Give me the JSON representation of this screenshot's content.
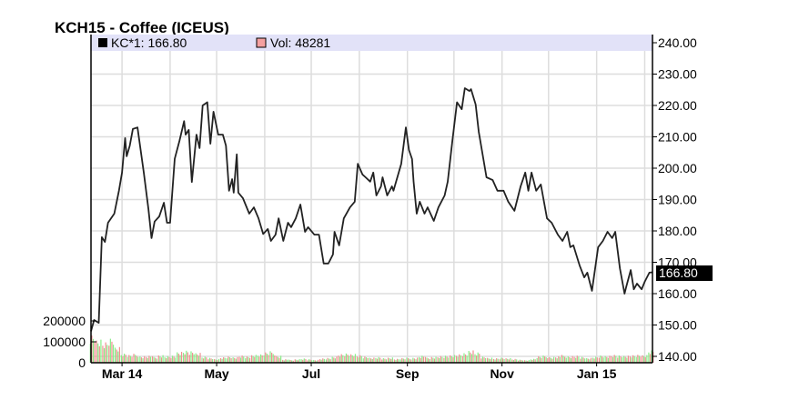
{
  "chart_data": {
    "type": "line",
    "title": "KCH15 - Coffee (ICEUS)",
    "legend": [
      {
        "label": "KC*1: 166.80",
        "color": "#000000"
      },
      {
        "label": "Vol: 48281",
        "color": "#f4a0a0"
      }
    ],
    "legend_placement": "top",
    "last_price_label": "166.80",
    "grid": true,
    "price_axis": {
      "side": "right",
      "ylim": [
        140,
        240
      ],
      "ticks": [
        "140.00",
        "150.00",
        "160.00",
        "170.00",
        "180.00",
        "190.00",
        "200.00",
        "210.00",
        "220.00",
        "230.00",
        "240.00"
      ]
    },
    "volume_axis": {
      "side": "left",
      "ticks": [
        "0",
        "100000",
        "200000"
      ]
    },
    "x_range": [
      "2014-02-09",
      "2015-02-06"
    ],
    "x_ticks": [
      {
        "date": "2014-03-01",
        "label": "Mar 14"
      },
      {
        "date": "2014-05-01",
        "label": "May"
      },
      {
        "date": "2014-07-01",
        "label": "Jul"
      },
      {
        "date": "2014-09-01",
        "label": "Sep"
      },
      {
        "date": "2014-11-01",
        "label": "Nov"
      },
      {
        "date": "2015-01-01",
        "label": "Jan 15"
      }
    ],
    "series": [
      {
        "name": "KC*1",
        "color": "#222222",
        "points": [
          [
            "2014-02-09",
            148
          ],
          [
            "2014-02-11",
            151.6
          ],
          [
            "2014-02-14",
            150.7
          ],
          [
            "2014-02-16",
            178
          ],
          [
            "2014-02-18",
            176.5
          ],
          [
            "2014-02-20",
            182.6
          ],
          [
            "2014-02-24",
            185.5
          ],
          [
            "2014-02-27",
            192.8
          ],
          [
            "2014-03-01",
            198.6
          ],
          [
            "2014-03-03",
            209.6
          ],
          [
            "2014-03-04",
            203.8
          ],
          [
            "2014-03-06",
            207.2
          ],
          [
            "2014-03-08",
            212.5
          ],
          [
            "2014-03-11",
            213
          ],
          [
            "2014-03-15",
            198.6
          ],
          [
            "2014-03-18",
            187
          ],
          [
            "2014-03-20",
            177.7
          ],
          [
            "2014-03-22",
            183
          ],
          [
            "2014-03-25",
            184.6
          ],
          [
            "2014-03-28",
            189
          ],
          [
            "2014-03-30",
            182.6
          ],
          [
            "2014-04-01",
            182.6
          ],
          [
            "2014-04-04",
            203
          ],
          [
            "2014-04-07",
            208.7
          ],
          [
            "2014-04-10",
            215
          ],
          [
            "2014-04-11",
            210.7
          ],
          [
            "2014-04-13",
            212.2
          ],
          [
            "2014-04-15",
            195.6
          ],
          [
            "2014-04-18",
            210.7
          ],
          [
            "2014-04-20",
            206.4
          ],
          [
            "2014-04-22",
            220
          ],
          [
            "2014-04-25",
            221
          ],
          [
            "2014-04-27",
            207.8
          ],
          [
            "2014-04-29",
            218
          ],
          [
            "2014-05-02",
            210.7
          ],
          [
            "2014-05-05",
            210.7
          ],
          [
            "2014-05-07",
            207.2
          ],
          [
            "2014-05-09",
            192.8
          ],
          [
            "2014-05-11",
            196.5
          ],
          [
            "2014-05-12",
            192.2
          ],
          [
            "2014-05-14",
            204.4
          ],
          [
            "2014-05-15",
            192.2
          ],
          [
            "2014-05-18",
            190.4
          ],
          [
            "2014-05-22",
            185.5
          ],
          [
            "2014-05-25",
            187.5
          ],
          [
            "2014-05-28",
            184
          ],
          [
            "2014-05-31",
            179
          ],
          [
            "2014-06-03",
            180.6
          ],
          [
            "2014-06-05",
            176.8
          ],
          [
            "2014-06-08",
            178.8
          ],
          [
            "2014-06-10",
            184
          ],
          [
            "2014-06-13",
            176.8
          ],
          [
            "2014-06-16",
            182.6
          ],
          [
            "2014-06-18",
            181.2
          ],
          [
            "2014-06-21",
            184
          ],
          [
            "2014-06-24",
            188.4
          ],
          [
            "2014-06-27",
            179.7
          ],
          [
            "2014-06-29",
            181.2
          ],
          [
            "2014-07-03",
            178.8
          ],
          [
            "2014-07-06",
            178.8
          ],
          [
            "2014-07-09",
            169.6
          ],
          [
            "2014-07-12",
            169.6
          ],
          [
            "2014-07-15",
            172.5
          ],
          [
            "2014-07-16",
            179.7
          ],
          [
            "2014-07-19",
            175.4
          ],
          [
            "2014-07-22",
            184
          ],
          [
            "2014-07-26",
            187.5
          ],
          [
            "2014-07-29",
            189.3
          ],
          [
            "2014-07-31",
            201.4
          ],
          [
            "2014-08-03",
            198
          ],
          [
            "2014-08-05",
            197.1
          ],
          [
            "2014-08-08",
            195.7
          ],
          [
            "2014-08-10",
            198.6
          ],
          [
            "2014-08-12",
            191.3
          ],
          [
            "2014-08-15",
            194.2
          ],
          [
            "2014-08-16",
            197.1
          ],
          [
            "2014-08-19",
            191.3
          ],
          [
            "2014-08-22",
            194.2
          ],
          [
            "2014-08-23",
            192.8
          ],
          [
            "2014-08-28",
            201.4
          ],
          [
            "2014-08-31",
            213
          ],
          [
            "2014-09-02",
            205.8
          ],
          [
            "2014-09-04",
            202.9
          ],
          [
            "2014-09-05",
            195.7
          ],
          [
            "2014-09-07",
            185.5
          ],
          [
            "2014-09-09",
            189.3
          ],
          [
            "2014-09-12",
            185.5
          ],
          [
            "2014-09-14",
            187.5
          ],
          [
            "2014-09-18",
            183.2
          ],
          [
            "2014-09-21",
            187.5
          ],
          [
            "2014-09-25",
            191.3
          ],
          [
            "2014-09-27",
            195.7
          ],
          [
            "2014-09-30",
            208.7
          ],
          [
            "2014-10-03",
            221
          ],
          [
            "2014-10-06",
            218.8
          ],
          [
            "2014-10-08",
            225.5
          ],
          [
            "2014-10-11",
            224.6
          ],
          [
            "2014-10-12",
            225.2
          ],
          [
            "2014-10-15",
            220.3
          ],
          [
            "2014-10-17",
            211.6
          ],
          [
            "2014-10-20",
            202.9
          ],
          [
            "2014-10-22",
            197.1
          ],
          [
            "2014-10-26",
            196.2
          ],
          [
            "2014-10-29",
            192.8
          ],
          [
            "2014-11-02",
            192.8
          ],
          [
            "2014-11-05",
            189.3
          ],
          [
            "2014-11-09",
            186.4
          ],
          [
            "2014-11-13",
            194.2
          ],
          [
            "2014-11-16",
            198.6
          ],
          [
            "2014-11-18",
            192.8
          ],
          [
            "2014-11-20",
            198.6
          ],
          [
            "2014-11-23",
            192.8
          ],
          [
            "2014-11-26",
            194.8
          ],
          [
            "2014-11-30",
            184
          ],
          [
            "2014-12-03",
            182.6
          ],
          [
            "2014-12-07",
            178.8
          ],
          [
            "2014-12-10",
            176.8
          ],
          [
            "2014-12-13",
            179.7
          ],
          [
            "2014-12-15",
            174.8
          ],
          [
            "2014-12-17",
            175.4
          ],
          [
            "2014-12-21",
            169
          ],
          [
            "2014-12-24",
            165.2
          ],
          [
            "2014-12-26",
            166.7
          ],
          [
            "2014-12-29",
            160.9
          ],
          [
            "2015-01-02",
            174.8
          ],
          [
            "2015-01-05",
            176.8
          ],
          [
            "2015-01-08",
            179.7
          ],
          [
            "2015-01-11",
            177.7
          ],
          [
            "2015-01-13",
            179.7
          ],
          [
            "2015-01-16",
            168.1
          ],
          [
            "2015-01-19",
            160
          ],
          [
            "2015-01-20",
            162
          ],
          [
            "2015-01-23",
            167.5
          ],
          [
            "2015-01-25",
            161.4
          ],
          [
            "2015-01-27",
            163.2
          ],
          [
            "2015-01-30",
            161.4
          ],
          [
            "2015-02-01",
            163.8
          ],
          [
            "2015-02-04",
            166.7
          ],
          [
            "2015-02-06",
            166.8
          ]
        ]
      },
      {
        "name": "Vol",
        "up_color": "#88ee88",
        "down_color": "#f09090",
        "points": [
          [
            "2014-02-10",
            110000,
            "up"
          ],
          [
            "2014-02-14",
            90000,
            "down"
          ],
          [
            "2014-02-18",
            80000,
            "down"
          ],
          [
            "2014-02-22",
            95000,
            "down"
          ],
          [
            "2014-02-26",
            60000,
            "up"
          ],
          [
            "2014-03-02",
            35000,
            "up"
          ],
          [
            "2014-03-06",
            30000,
            "up"
          ],
          [
            "2014-03-10",
            35000,
            "down"
          ],
          [
            "2014-03-14",
            28000,
            "up"
          ],
          [
            "2014-03-18",
            30000,
            "down"
          ],
          [
            "2014-03-22",
            25000,
            "down"
          ],
          [
            "2014-03-26",
            32000,
            "down"
          ],
          [
            "2014-03-30",
            28000,
            "up"
          ],
          [
            "2014-04-03",
            30000,
            "down"
          ],
          [
            "2014-04-07",
            45000,
            "up"
          ],
          [
            "2014-04-11",
            50000,
            "up"
          ],
          [
            "2014-04-15",
            48000,
            "down"
          ],
          [
            "2014-04-19",
            40000,
            "up"
          ],
          [
            "2014-04-23",
            25000,
            "up"
          ],
          [
            "2014-04-27",
            20000,
            "down"
          ],
          [
            "2014-05-01",
            15000,
            "down"
          ],
          [
            "2014-05-05",
            22000,
            "down"
          ],
          [
            "2014-05-09",
            25000,
            "up"
          ],
          [
            "2014-05-13",
            22000,
            "up"
          ],
          [
            "2014-05-17",
            28000,
            "down"
          ],
          [
            "2014-05-21",
            25000,
            "up"
          ],
          [
            "2014-05-25",
            30000,
            "down"
          ],
          [
            "2014-05-29",
            32000,
            "up"
          ],
          [
            "2014-06-02",
            40000,
            "up"
          ],
          [
            "2014-06-06",
            45000,
            "up"
          ],
          [
            "2014-06-10",
            30000,
            "down"
          ],
          [
            "2014-06-14",
            15000,
            "down"
          ],
          [
            "2014-06-18",
            12000,
            "up"
          ],
          [
            "2014-06-22",
            15000,
            "down"
          ],
          [
            "2014-06-26",
            18000,
            "up"
          ],
          [
            "2014-06-30",
            15000,
            "down"
          ],
          [
            "2014-07-04",
            12000,
            "up"
          ],
          [
            "2014-07-08",
            18000,
            "down"
          ],
          [
            "2014-07-12",
            20000,
            "up"
          ],
          [
            "2014-07-16",
            25000,
            "up"
          ],
          [
            "2014-07-20",
            35000,
            "down"
          ],
          [
            "2014-07-24",
            38000,
            "down"
          ],
          [
            "2014-07-28",
            35000,
            "down"
          ],
          [
            "2014-08-01",
            30000,
            "down"
          ],
          [
            "2014-08-05",
            25000,
            "up"
          ],
          [
            "2014-08-09",
            20000,
            "up"
          ],
          [
            "2014-08-13",
            22000,
            "up"
          ],
          [
            "2014-08-17",
            18000,
            "down"
          ],
          [
            "2014-08-21",
            20000,
            "down"
          ],
          [
            "2014-08-25",
            15000,
            "down"
          ],
          [
            "2014-08-29",
            18000,
            "up"
          ],
          [
            "2014-09-02",
            20000,
            "up"
          ],
          [
            "2014-09-06",
            22000,
            "up"
          ],
          [
            "2014-09-10",
            30000,
            "up"
          ],
          [
            "2014-09-14",
            22000,
            "down"
          ],
          [
            "2014-09-18",
            25000,
            "down"
          ],
          [
            "2014-09-22",
            28000,
            "down"
          ],
          [
            "2014-09-26",
            30000,
            "down"
          ],
          [
            "2014-09-30",
            32000,
            "down"
          ],
          [
            "2014-10-04",
            35000,
            "down"
          ],
          [
            "2014-10-08",
            40000,
            "down"
          ],
          [
            "2014-10-12",
            50000,
            "up"
          ],
          [
            "2014-10-16",
            42000,
            "up"
          ],
          [
            "2014-10-20",
            25000,
            "down"
          ],
          [
            "2014-10-24",
            20000,
            "down"
          ],
          [
            "2014-10-28",
            18000,
            "down"
          ],
          [
            "2014-11-01",
            20000,
            "down"
          ],
          [
            "2014-11-05",
            18000,
            "down"
          ],
          [
            "2014-11-09",
            15000,
            "down"
          ],
          [
            "2014-11-13",
            12000,
            "down"
          ],
          [
            "2014-11-17",
            10000,
            "down"
          ],
          [
            "2014-11-21",
            15000,
            "up"
          ],
          [
            "2014-11-25",
            25000,
            "up"
          ],
          [
            "2014-11-29",
            28000,
            "up"
          ],
          [
            "2014-12-03",
            25000,
            "down"
          ],
          [
            "2014-12-07",
            28000,
            "down"
          ],
          [
            "2014-12-11",
            30000,
            "down"
          ],
          [
            "2014-12-15",
            28000,
            "up"
          ],
          [
            "2014-12-19",
            30000,
            "down"
          ],
          [
            "2014-12-23",
            25000,
            "down"
          ],
          [
            "2014-12-27",
            20000,
            "up"
          ],
          [
            "2014-12-31",
            25000,
            "up"
          ],
          [
            "2015-01-04",
            30000,
            "down"
          ],
          [
            "2015-01-08",
            28000,
            "up"
          ],
          [
            "2015-01-12",
            32000,
            "down"
          ],
          [
            "2015-01-16",
            30000,
            "down"
          ],
          [
            "2015-01-20",
            28000,
            "up"
          ],
          [
            "2015-01-24",
            30000,
            "down"
          ],
          [
            "2015-01-28",
            32000,
            "up"
          ],
          [
            "2015-02-01",
            30000,
            "down"
          ],
          [
            "2015-02-05",
            48281,
            "up"
          ]
        ]
      }
    ]
  }
}
